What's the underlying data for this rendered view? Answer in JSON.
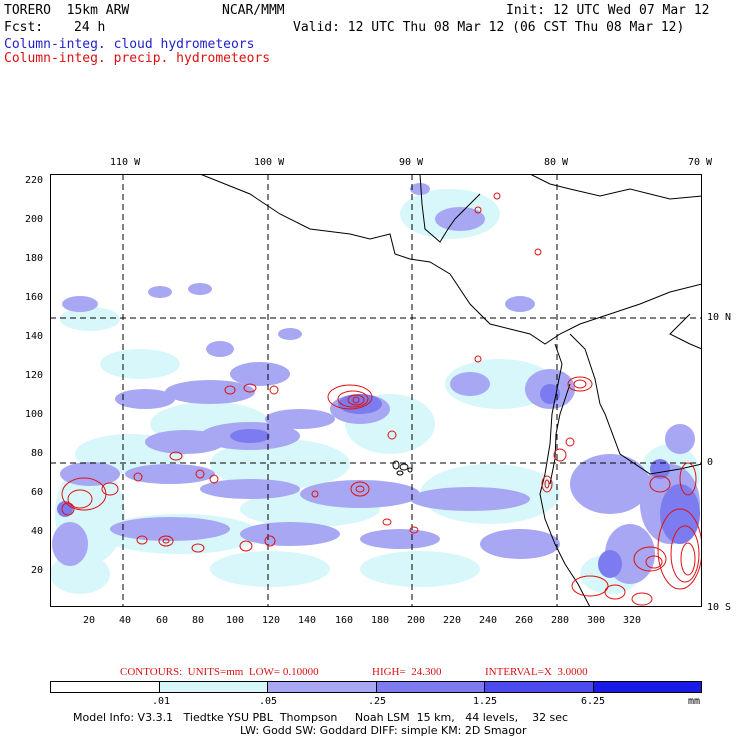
{
  "header": {
    "model": "TORERO  15km ARW",
    "center": "NCAR/MMM",
    "init": "Init: 12 UTC Wed 07 Mar 12",
    "fcst_label": "Fcst:",
    "fcst_value": "24 h",
    "valid": "Valid: 12 UTC Thu 08 Mar 12 (06 CST Thu 08 Mar 12)",
    "field1": "Column-integ. cloud hydrometeors",
    "field2": "Column-integ. precip. hydrometeors"
  },
  "colors": {
    "field1": "#2222cc",
    "field2": "#dd1111",
    "contour": "#dd1111",
    "shade_light": "#d8f7fa",
    "shade_mid": "#a7a7f3",
    "shade_dark": "#7c7cf0",
    "shade_deep": "#4a4aee",
    "shade_max": "#1a1ae6"
  },
  "map": {
    "top_lon_labels": [
      "110 W",
      "100 W",
      "90 W",
      "80 W",
      "70 W"
    ],
    "right_lat_labels": [
      "10 N",
      "0",
      "10 S"
    ],
    "left_y_ticks": [
      "220",
      "200",
      "180",
      "160",
      "140",
      "120",
      "100",
      "80",
      "60",
      "40",
      "20"
    ],
    "bottom_x_ticks": [
      "20",
      "40",
      "60",
      "80",
      "100",
      "120",
      "140",
      "160",
      "180",
      "200",
      "220",
      "240",
      "260",
      "280",
      "300",
      "320"
    ]
  },
  "contours_caption": {
    "text1": "CONTOURS:  UNITS=mm  LOW= 0.10000",
    "text2": "HIGH=  24.300",
    "text3": "INTERVAL=X  3.0000"
  },
  "legend": {
    "labels": [
      ".01",
      ".05",
      ".25",
      "1.25",
      "6.25"
    ],
    "unit": "mm",
    "colors": [
      "#ffffff",
      "#d8f7fa",
      "#a7a7f3",
      "#7c7cf0",
      "#4a4aee",
      "#1a1ae6"
    ]
  },
  "info": {
    "line1": "Model Info: V3.3.1   Tiedtke YSU PBL  Thompson     Noah LSM  15 km,   44 levels,    32 sec",
    "line2": "LW: Godd SW: Goddard DIFF: simple KM: 2D Smagor"
  }
}
